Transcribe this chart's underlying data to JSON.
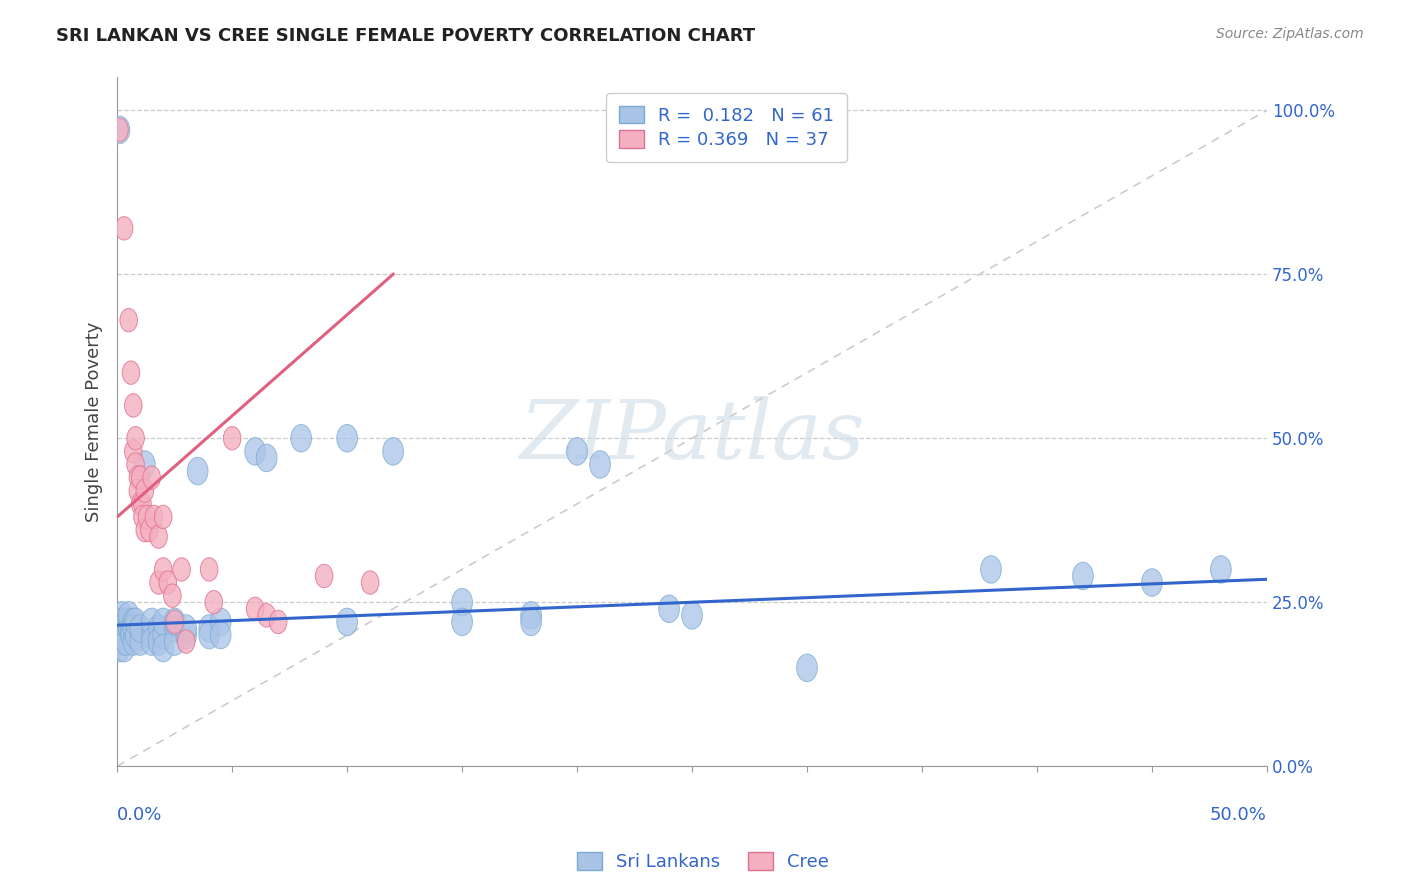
{
  "title": "SRI LANKAN VS CREE SINGLE FEMALE POVERTY CORRELATION CHART",
  "source_text": "Source: ZipAtlas.com",
  "ylabel": "Single Female Poverty",
  "right_yticks": [
    0.0,
    0.25,
    0.5,
    0.75,
    1.0
  ],
  "right_yticklabels": [
    "0.0%",
    "25.0%",
    "50.0%",
    "75.0%",
    "100.0%"
  ],
  "xlim": [
    0.0,
    0.5
  ],
  "ylim": [
    0.0,
    1.05
  ],
  "sri_lankan_color": "#aac4e8",
  "sri_lankan_edge": "#7aaad0",
  "cree_color": "#f4afc0",
  "cree_edge": "#e07090",
  "sri_lankan_line_color": "#3366cc",
  "cree_line_color": "#e06080",
  "ref_line_color": "#cccccc",
  "watermark_text": "ZIPatlas",
  "legend_text_color": "#3366cc",
  "sri_line_x0": 0.0,
  "sri_line_y0": 0.215,
  "sri_line_x1": 0.5,
  "sri_line_y1": 0.285,
  "cree_line_x0": 0.0,
  "cree_line_y0": 0.38,
  "cree_line_x1": 0.12,
  "cree_line_y1": 0.75,
  "ref_line_x0": 0.0,
  "ref_line_y0": 0.0,
  "ref_line_x1": 0.5,
  "ref_line_y1": 1.0,
  "sri_lankan_points": [
    [
      0.001,
      0.97
    ],
    [
      0.001,
      0.22
    ],
    [
      0.001,
      0.2
    ],
    [
      0.001,
      0.18
    ],
    [
      0.002,
      0.23
    ],
    [
      0.002,
      0.21
    ],
    [
      0.002,
      0.19
    ],
    [
      0.002,
      0.22
    ],
    [
      0.003,
      0.21
    ],
    [
      0.003,
      0.2
    ],
    [
      0.003,
      0.19
    ],
    [
      0.003,
      0.18
    ],
    [
      0.004,
      0.22
    ],
    [
      0.004,
      0.2
    ],
    [
      0.004,
      0.19
    ],
    [
      0.005,
      0.22
    ],
    [
      0.005,
      0.21
    ],
    [
      0.005,
      0.23
    ],
    [
      0.006,
      0.21
    ],
    [
      0.006,
      0.2
    ],
    [
      0.007,
      0.22
    ],
    [
      0.007,
      0.21
    ],
    [
      0.007,
      0.19
    ],
    [
      0.008,
      0.2
    ],
    [
      0.008,
      0.22
    ],
    [
      0.01,
      0.19
    ],
    [
      0.01,
      0.21
    ],
    [
      0.012,
      0.46
    ],
    [
      0.015,
      0.2
    ],
    [
      0.015,
      0.22
    ],
    [
      0.015,
      0.19
    ],
    [
      0.018,
      0.21
    ],
    [
      0.018,
      0.19
    ],
    [
      0.02,
      0.2
    ],
    [
      0.02,
      0.22
    ],
    [
      0.02,
      0.18
    ],
    [
      0.025,
      0.21
    ],
    [
      0.025,
      0.19
    ],
    [
      0.025,
      0.22
    ],
    [
      0.03,
      0.2
    ],
    [
      0.03,
      0.21
    ],
    [
      0.035,
      0.45
    ],
    [
      0.04,
      0.21
    ],
    [
      0.04,
      0.2
    ],
    [
      0.045,
      0.22
    ],
    [
      0.045,
      0.2
    ],
    [
      0.06,
      0.48
    ],
    [
      0.065,
      0.47
    ],
    [
      0.08,
      0.5
    ],
    [
      0.1,
      0.22
    ],
    [
      0.1,
      0.5
    ],
    [
      0.12,
      0.48
    ],
    [
      0.15,
      0.25
    ],
    [
      0.15,
      0.22
    ],
    [
      0.18,
      0.23
    ],
    [
      0.18,
      0.22
    ],
    [
      0.2,
      0.48
    ],
    [
      0.21,
      0.46
    ],
    [
      0.24,
      0.24
    ],
    [
      0.25,
      0.23
    ],
    [
      0.3,
      0.15
    ],
    [
      0.38,
      0.3
    ],
    [
      0.42,
      0.29
    ],
    [
      0.45,
      0.28
    ],
    [
      0.48,
      0.3
    ]
  ],
  "cree_points": [
    [
      0.001,
      0.97
    ],
    [
      0.003,
      0.82
    ],
    [
      0.005,
      0.68
    ],
    [
      0.006,
      0.6
    ],
    [
      0.007,
      0.55
    ],
    [
      0.007,
      0.48
    ],
    [
      0.008,
      0.5
    ],
    [
      0.008,
      0.46
    ],
    [
      0.009,
      0.44
    ],
    [
      0.009,
      0.42
    ],
    [
      0.01,
      0.44
    ],
    [
      0.01,
      0.4
    ],
    [
      0.011,
      0.4
    ],
    [
      0.011,
      0.38
    ],
    [
      0.012,
      0.42
    ],
    [
      0.012,
      0.36
    ],
    [
      0.013,
      0.38
    ],
    [
      0.014,
      0.36
    ],
    [
      0.015,
      0.44
    ],
    [
      0.016,
      0.38
    ],
    [
      0.018,
      0.35
    ],
    [
      0.018,
      0.28
    ],
    [
      0.02,
      0.3
    ],
    [
      0.02,
      0.38
    ],
    [
      0.022,
      0.28
    ],
    [
      0.024,
      0.26
    ],
    [
      0.025,
      0.22
    ],
    [
      0.028,
      0.3
    ],
    [
      0.03,
      0.19
    ],
    [
      0.04,
      0.3
    ],
    [
      0.042,
      0.25
    ],
    [
      0.05,
      0.5
    ],
    [
      0.06,
      0.24
    ],
    [
      0.065,
      0.23
    ],
    [
      0.07,
      0.22
    ],
    [
      0.09,
      0.29
    ],
    [
      0.11,
      0.28
    ]
  ]
}
